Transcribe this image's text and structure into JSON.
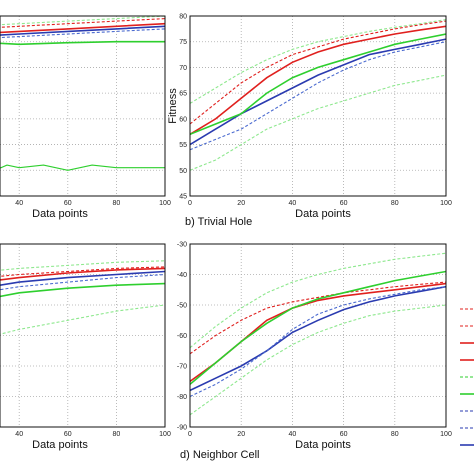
{
  "chart_data": [
    {
      "type": "line",
      "xlabel": "Data points",
      "x_ticks_visible": [
        40,
        60,
        80,
        100
      ],
      "xlim": [
        0,
        100
      ],
      "ylim": [
        45,
        80
      ],
      "grid": true,
      "series": [
        {
          "color": "#e0201e",
          "style": "solid",
          "x": [
            0,
            20,
            40,
            60,
            80,
            100
          ],
          "y": [
            76,
            76.5,
            77,
            77.5,
            78,
            78.5
          ]
        },
        {
          "color": "#e0201e",
          "style": "dashed",
          "x": [
            0,
            20,
            40,
            60,
            80,
            100
          ],
          "y": [
            77,
            77.5,
            78,
            78.5,
            79,
            79.5
          ]
        },
        {
          "color": "#2a3bb0",
          "style": "solid",
          "x": [
            0,
            20,
            40,
            60,
            80,
            100
          ],
          "y": [
            75.5,
            76,
            76.5,
            77,
            77.5,
            78
          ]
        },
        {
          "color": "#4a6ad0",
          "style": "dashed",
          "x": [
            0,
            20,
            40,
            60,
            80,
            100
          ],
          "y": [
            75,
            75.5,
            76,
            76.5,
            77,
            77.5
          ]
        },
        {
          "color": "#2ecf2e",
          "style": "solid",
          "x": [
            0,
            20,
            40,
            60,
            80,
            100
          ],
          "y": [
            74.5,
            75,
            74.5,
            74.8,
            75,
            75
          ]
        },
        {
          "color": "#8ee88e",
          "style": "dashed",
          "x": [
            0,
            20,
            40,
            60,
            80,
            100
          ],
          "y": [
            77.5,
            78,
            78.5,
            79,
            79.5,
            80
          ]
        },
        {
          "color": "#2ecf2e",
          "style": "solid-thin",
          "x": [
            0,
            5,
            10,
            15,
            20,
            25,
            30,
            35,
            40,
            50,
            60,
            70,
            80,
            90,
            100
          ],
          "y": [
            50,
            49,
            52,
            51,
            50.5,
            52,
            50,
            51,
            50.5,
            51,
            50,
            51,
            50.5,
            50.5,
            50.5
          ]
        }
      ]
    },
    {
      "type": "line",
      "caption": "b) Trivial Hole",
      "xlabel": "Data points",
      "ylabel": "Fitness",
      "x_ticks": [
        0,
        20,
        40,
        60,
        80,
        100
      ],
      "y_ticks": [
        45,
        50,
        55,
        60,
        65,
        70,
        75,
        80
      ],
      "xlim": [
        0,
        100
      ],
      "ylim": [
        45,
        80
      ],
      "grid": true,
      "series": [
        {
          "color": "#e0201e",
          "style": "solid",
          "x": [
            0,
            10,
            20,
            30,
            40,
            50,
            60,
            70,
            80,
            90,
            100
          ],
          "y": [
            57,
            60,
            64,
            68,
            71,
            73,
            74.5,
            75.5,
            76.5,
            77.3,
            78
          ]
        },
        {
          "color": "#e0201e",
          "style": "dashed",
          "x": [
            0,
            10,
            20,
            30,
            40,
            50,
            60,
            70,
            80,
            90,
            100
          ],
          "y": [
            59,
            63,
            67,
            70,
            72.5,
            74,
            75.5,
            76.5,
            77.5,
            78.3,
            79
          ]
        },
        {
          "color": "#2a3bb0",
          "style": "solid",
          "x": [
            0,
            10,
            20,
            30,
            40,
            50,
            60,
            70,
            80,
            90,
            100
          ],
          "y": [
            55,
            58,
            61,
            63.5,
            66,
            68.5,
            70.5,
            72.5,
            73.5,
            74.5,
            75.5
          ]
        },
        {
          "color": "#4a6ad0",
          "style": "dashed",
          "x": [
            0,
            10,
            20,
            30,
            40,
            50,
            60,
            70,
            80,
            90,
            100
          ],
          "y": [
            54,
            56,
            58,
            61,
            64,
            67,
            69.5,
            71.5,
            73,
            74,
            75
          ]
        },
        {
          "color": "#2ecf2e",
          "style": "solid",
          "x": [
            0,
            10,
            20,
            30,
            40,
            50,
            60,
            70,
            80,
            90,
            100
          ],
          "y": [
            57,
            59,
            61,
            65,
            68,
            70,
            71.5,
            73,
            74.5,
            75.5,
            76.5
          ]
        },
        {
          "color": "#8ee88e",
          "style": "dashed",
          "x": [
            0,
            10,
            20,
            30,
            40,
            50,
            60,
            70,
            80,
            90,
            100
          ],
          "y": [
            63,
            66,
            69,
            71.5,
            73.5,
            75,
            76,
            77,
            77.8,
            78.5,
            79.3
          ]
        },
        {
          "color": "#8ee88e",
          "style": "dashed",
          "x": [
            0,
            10,
            20,
            30,
            40,
            50,
            60,
            70,
            80,
            90,
            100
          ],
          "y": [
            50,
            52,
            55,
            58,
            60,
            62,
            63.5,
            65,
            66.5,
            67.5,
            68.5
          ]
        }
      ]
    },
    {
      "type": "line",
      "xlabel": "Data points",
      "x_ticks_visible": [
        40,
        60,
        80,
        100
      ],
      "xlim": [
        0,
        100
      ],
      "ylim": [
        -90,
        -30
      ],
      "grid": true,
      "series": [
        {
          "color": "#e0201e",
          "style": "solid",
          "x": [
            0,
            20,
            40,
            60,
            80,
            100
          ],
          "y": [
            -46,
            -43,
            -41,
            -39.5,
            -38.5,
            -38
          ]
        },
        {
          "color": "#e0201e",
          "style": "dashed",
          "x": [
            0,
            20,
            40,
            60,
            80,
            100
          ],
          "y": [
            -44,
            -41.5,
            -40,
            -39,
            -38,
            -37.5
          ]
        },
        {
          "color": "#2a3bb0",
          "style": "solid",
          "x": [
            0,
            20,
            40,
            60,
            80,
            100
          ],
          "y": [
            -48,
            -45,
            -42.5,
            -41,
            -40,
            -39
          ]
        },
        {
          "color": "#4a6ad0",
          "style": "dashed",
          "x": [
            0,
            20,
            40,
            60,
            80,
            100
          ],
          "y": [
            -50,
            -46.5,
            -44,
            -42.5,
            -41,
            -40
          ]
        },
        {
          "color": "#2ecf2e",
          "style": "solid",
          "x": [
            0,
            20,
            40,
            60,
            80,
            100
          ],
          "y": [
            -52,
            -49,
            -46,
            -44.5,
            -43.5,
            -43
          ]
        },
        {
          "color": "#8ee88e",
          "style": "dashed",
          "x": [
            0,
            20,
            40,
            60,
            80,
            100
          ],
          "y": [
            -42,
            -39.5,
            -38,
            -37,
            -36,
            -35.5
          ]
        },
        {
          "color": "#8ee88e",
          "style": "dashed",
          "x": [
            0,
            20,
            40,
            60,
            80,
            100
          ],
          "y": [
            -68,
            -62,
            -58,
            -55,
            -52,
            -50
          ]
        }
      ]
    },
    {
      "type": "line",
      "caption": "d) Neighbor Cell",
      "xlabel": "Data points",
      "x_ticks": [
        0,
        20,
        40,
        60,
        80,
        100
      ],
      "y_ticks": [
        -30,
        -40,
        -50,
        -60,
        -70,
        -80,
        -90
      ],
      "xlim": [
        0,
        100
      ],
      "ylim": [
        -90,
        -30
      ],
      "grid": true,
      "series": [
        {
          "color": "#e0201e",
          "style": "solid",
          "x": [
            0,
            10,
            20,
            30,
            40,
            50,
            60,
            70,
            80,
            90,
            100
          ],
          "y": [
            -75,
            -69,
            -62,
            -55,
            -51,
            -48.5,
            -47,
            -46,
            -45,
            -44,
            -43
          ]
        },
        {
          "color": "#e0201e",
          "style": "dashed",
          "x": [
            0,
            10,
            20,
            30,
            40,
            50,
            60,
            70,
            80,
            90,
            100
          ],
          "y": [
            -66,
            -60,
            -55,
            -51,
            -49,
            -47.5,
            -46,
            -45,
            -44,
            -43.2,
            -42.5
          ]
        },
        {
          "color": "#2a3bb0",
          "style": "solid",
          "x": [
            0,
            10,
            20,
            30,
            40,
            50,
            60,
            70,
            80,
            90,
            100
          ],
          "y": [
            -78,
            -74,
            -70,
            -65,
            -59,
            -55,
            -51.5,
            -49,
            -47,
            -45.5,
            -44
          ]
        },
        {
          "color": "#4a6ad0",
          "style": "dashed",
          "x": [
            0,
            10,
            20,
            30,
            40,
            50,
            60,
            70,
            80,
            90,
            100
          ],
          "y": [
            -80,
            -76,
            -71,
            -65,
            -58,
            -53,
            -50,
            -48,
            -46.5,
            -45,
            -44
          ]
        },
        {
          "color": "#2ecf2e",
          "style": "solid",
          "x": [
            0,
            10,
            20,
            30,
            40,
            50,
            60,
            70,
            80,
            90,
            100
          ],
          "y": [
            -76,
            -69,
            -62,
            -56,
            -51,
            -48,
            -46,
            -44,
            -42,
            -40.5,
            -39
          ]
        },
        {
          "color": "#8ee88e",
          "style": "dashed",
          "x": [
            0,
            10,
            20,
            30,
            40,
            50,
            60,
            70,
            80,
            90,
            100
          ],
          "y": [
            -64,
            -57,
            -51,
            -46,
            -42.5,
            -40,
            -38,
            -36.5,
            -35,
            -34,
            -33
          ]
        },
        {
          "color": "#8ee88e",
          "style": "dashed",
          "x": [
            0,
            10,
            20,
            30,
            40,
            50,
            60,
            70,
            80,
            90,
            100
          ],
          "y": [
            -86,
            -80,
            -74,
            -68,
            -63,
            -59,
            -56,
            -53.5,
            -52,
            -51,
            -50
          ]
        }
      ]
    }
  ],
  "legend_entries": [
    {
      "color": "#e0201e",
      "style": "dashed"
    },
    {
      "color": "#e0201e",
      "style": "dashed"
    },
    {
      "color": "#e0201e",
      "style": "solid"
    },
    {
      "color": "#e0201e",
      "style": "solid"
    },
    {
      "color": "#2ecf2e",
      "style": "dashed"
    },
    {
      "color": "#2ecf2e",
      "style": "solid"
    },
    {
      "color": "#2a3bb0",
      "style": "dashed"
    },
    {
      "color": "#2a3bb0",
      "style": "dashed"
    },
    {
      "color": "#2a3bb0",
      "style": "solid"
    }
  ]
}
